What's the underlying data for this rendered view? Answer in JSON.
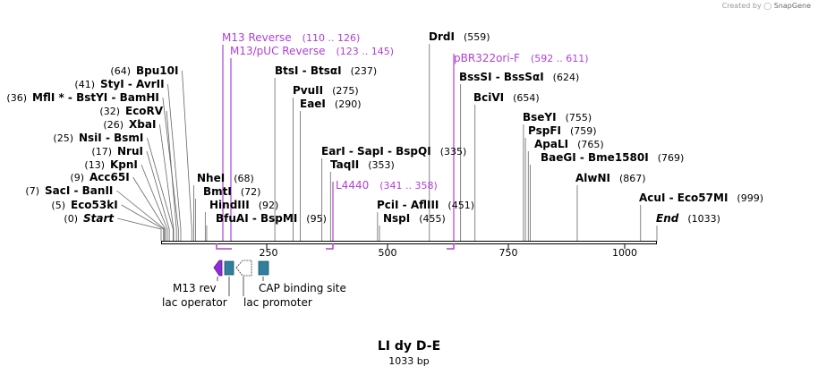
{
  "credit": {
    "created_by": "Created by",
    "brand": "SnapGene"
  },
  "map": {
    "title": "LI dy D-E",
    "size_label": "1033 bp"
  },
  "axis": {
    "ticks": [
      "250",
      "500",
      "750",
      "1000"
    ]
  },
  "sites": [
    {
      "name": "Start",
      "pos": "(0)",
      "italic": true
    },
    {
      "name": "Eco53kI",
      "pos": "(5)"
    },
    {
      "name": "SacI - BanII",
      "pos": "(7)"
    },
    {
      "name": "Acc65I",
      "pos": "(9)"
    },
    {
      "name": "KpnI",
      "pos": "(13)"
    },
    {
      "name": "NruI",
      "pos": "(17)"
    },
    {
      "name": "NsiI - BsmI",
      "pos": "(25)"
    },
    {
      "name": "XbaI",
      "pos": "(26)"
    },
    {
      "name": "EcoRV",
      "pos": "(32)"
    },
    {
      "name": "MflI * - BstYI - BamHI",
      "pos": "(36)"
    },
    {
      "name": "StyI - AvrII",
      "pos": "(41)"
    },
    {
      "name": "Bpu10I",
      "pos": "(64)"
    },
    {
      "name": "NheI",
      "pos": "(68)"
    },
    {
      "name": "BmtI",
      "pos": "(72)"
    },
    {
      "name": "HindIII",
      "pos": "(92)"
    },
    {
      "name": "BfuAI - BspMI",
      "pos": "(95)"
    },
    {
      "name": "BtsI - BtsαI",
      "pos": "(237)"
    },
    {
      "name": "PvuII",
      "pos": "(275)"
    },
    {
      "name": "EaeI",
      "pos": "(290)"
    },
    {
      "name": "EarI - SapI - BspQI",
      "pos": "(335)"
    },
    {
      "name": "TaqII",
      "pos": "(353)"
    },
    {
      "name": "PciI - AflIII",
      "pos": "(451)"
    },
    {
      "name": "NspI",
      "pos": "(455)"
    },
    {
      "name": "DrdI",
      "pos": "(559)"
    },
    {
      "name": "BssSI - BssSαI",
      "pos": "(624)"
    },
    {
      "name": "BciVI",
      "pos": "(654)"
    },
    {
      "name": "BseYI",
      "pos": "(755)"
    },
    {
      "name": "PspFI",
      "pos": "(759)"
    },
    {
      "name": "ApaLI",
      "pos": "(765)"
    },
    {
      "name": "BaeGI - Bme1580I",
      "pos": "(769)"
    },
    {
      "name": "AlwNI",
      "pos": "(867)"
    },
    {
      "name": "AcuI - Eco57MI",
      "pos": "(999)"
    },
    {
      "name": "End",
      "pos": "(1033)",
      "italic": true
    }
  ],
  "primers": [
    {
      "name": "M13 Reverse",
      "range": "(110 .. 126)"
    },
    {
      "name": "M13/pUC Reverse",
      "range": "(123 .. 145)"
    },
    {
      "name": "L4440",
      "range": "(341 .. 358)"
    },
    {
      "name": "pBR322ori-F",
      "range": "(592 .. 611)"
    }
  ],
  "features": [
    {
      "name": "M13 rev"
    },
    {
      "name": "lac operator"
    },
    {
      "name": "lac promoter"
    },
    {
      "name": "CAP binding site"
    }
  ],
  "colors": {
    "primer": "#b040d8",
    "feature_teal": "#2f7f9d",
    "m13rev_purple": "#8f2dd6",
    "line": "#555555"
  }
}
